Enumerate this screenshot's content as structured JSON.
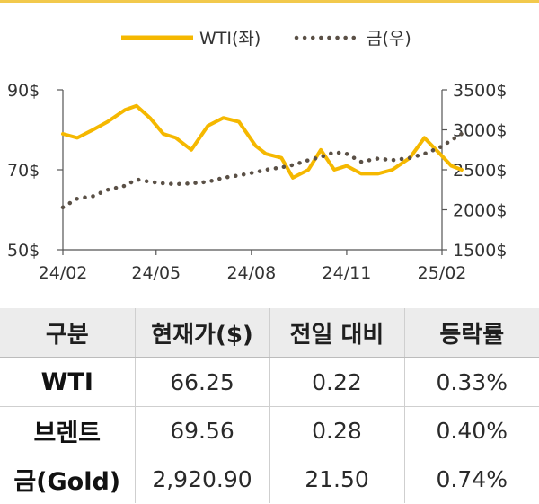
{
  "chart_data": {
    "type": "line",
    "x_ticks": [
      "24/02",
      "24/05",
      "24/08",
      "24/11",
      "25/02"
    ],
    "y_left": {
      "ticks": [
        "90$",
        "70$",
        "50$"
      ],
      "range": [
        50,
        90
      ]
    },
    "y_right": {
      "ticks": [
        "3500$",
        "3000$",
        "2500$",
        "2000$",
        "1500$"
      ],
      "range": [
        1500,
        3500
      ]
    },
    "series": [
      {
        "name": "WTI(좌)",
        "axis": "left",
        "color": "#f5b800",
        "style": "solid",
        "x": [
          "2024-02-01",
          "2024-02-15",
          "2024-03-01",
          "2024-03-15",
          "2024-04-01",
          "2024-04-12",
          "2024-04-25",
          "2024-05-08",
          "2024-05-20",
          "2024-06-04",
          "2024-06-20",
          "2024-07-05",
          "2024-07-20",
          "2024-08-05",
          "2024-08-15",
          "2024-08-30",
          "2024-09-10",
          "2024-09-25",
          "2024-10-07",
          "2024-10-20",
          "2024-11-01",
          "2024-11-15",
          "2024-12-01",
          "2024-12-15",
          "2025-01-01",
          "2025-01-15",
          "2025-01-30",
          "2025-02-10",
          "2025-02-20"
        ],
        "values": [
          79,
          78,
          80,
          82,
          85,
          86,
          83,
          79,
          78,
          75,
          81,
          83,
          82,
          76,
          74,
          73,
          68,
          70,
          75,
          70,
          71,
          69,
          69,
          70,
          73,
          78,
          74,
          71,
          70
        ]
      },
      {
        "name": "금(우)",
        "axis": "right",
        "color": "#5a5046",
        "style": "dotted",
        "x": [
          "2024-02-01",
          "2024-02-15",
          "2024-03-01",
          "2024-03-15",
          "2024-04-01",
          "2024-04-12",
          "2024-04-25",
          "2024-05-08",
          "2024-05-20",
          "2024-06-04",
          "2024-06-20",
          "2024-07-05",
          "2024-07-20",
          "2024-08-05",
          "2024-08-15",
          "2024-08-30",
          "2024-09-10",
          "2024-09-25",
          "2024-10-07",
          "2024-10-20",
          "2024-11-01",
          "2024-11-15",
          "2024-12-01",
          "2024-12-15",
          "2025-01-01",
          "2025-01-15",
          "2025-01-30",
          "2025-02-10",
          "2025-02-20"
        ],
        "values": [
          2030,
          2140,
          2170,
          2250,
          2300,
          2380,
          2350,
          2330,
          2320,
          2330,
          2350,
          2400,
          2430,
          2470,
          2500,
          2530,
          2560,
          2620,
          2660,
          2720,
          2700,
          2600,
          2640,
          2620,
          2650,
          2700,
          2780,
          2870,
          2950
        ]
      }
    ]
  },
  "table": {
    "headers": [
      "구분",
      "현재가($)",
      "전일 대비",
      "등락률"
    ],
    "rows": [
      [
        "WTI",
        "66.25",
        "0.22",
        "0.33%"
      ],
      [
        "브렌트",
        "69.56",
        "0.28",
        "0.40%"
      ],
      [
        "금(Gold)",
        "2,920.90",
        "21.50",
        "0.74%"
      ]
    ]
  }
}
